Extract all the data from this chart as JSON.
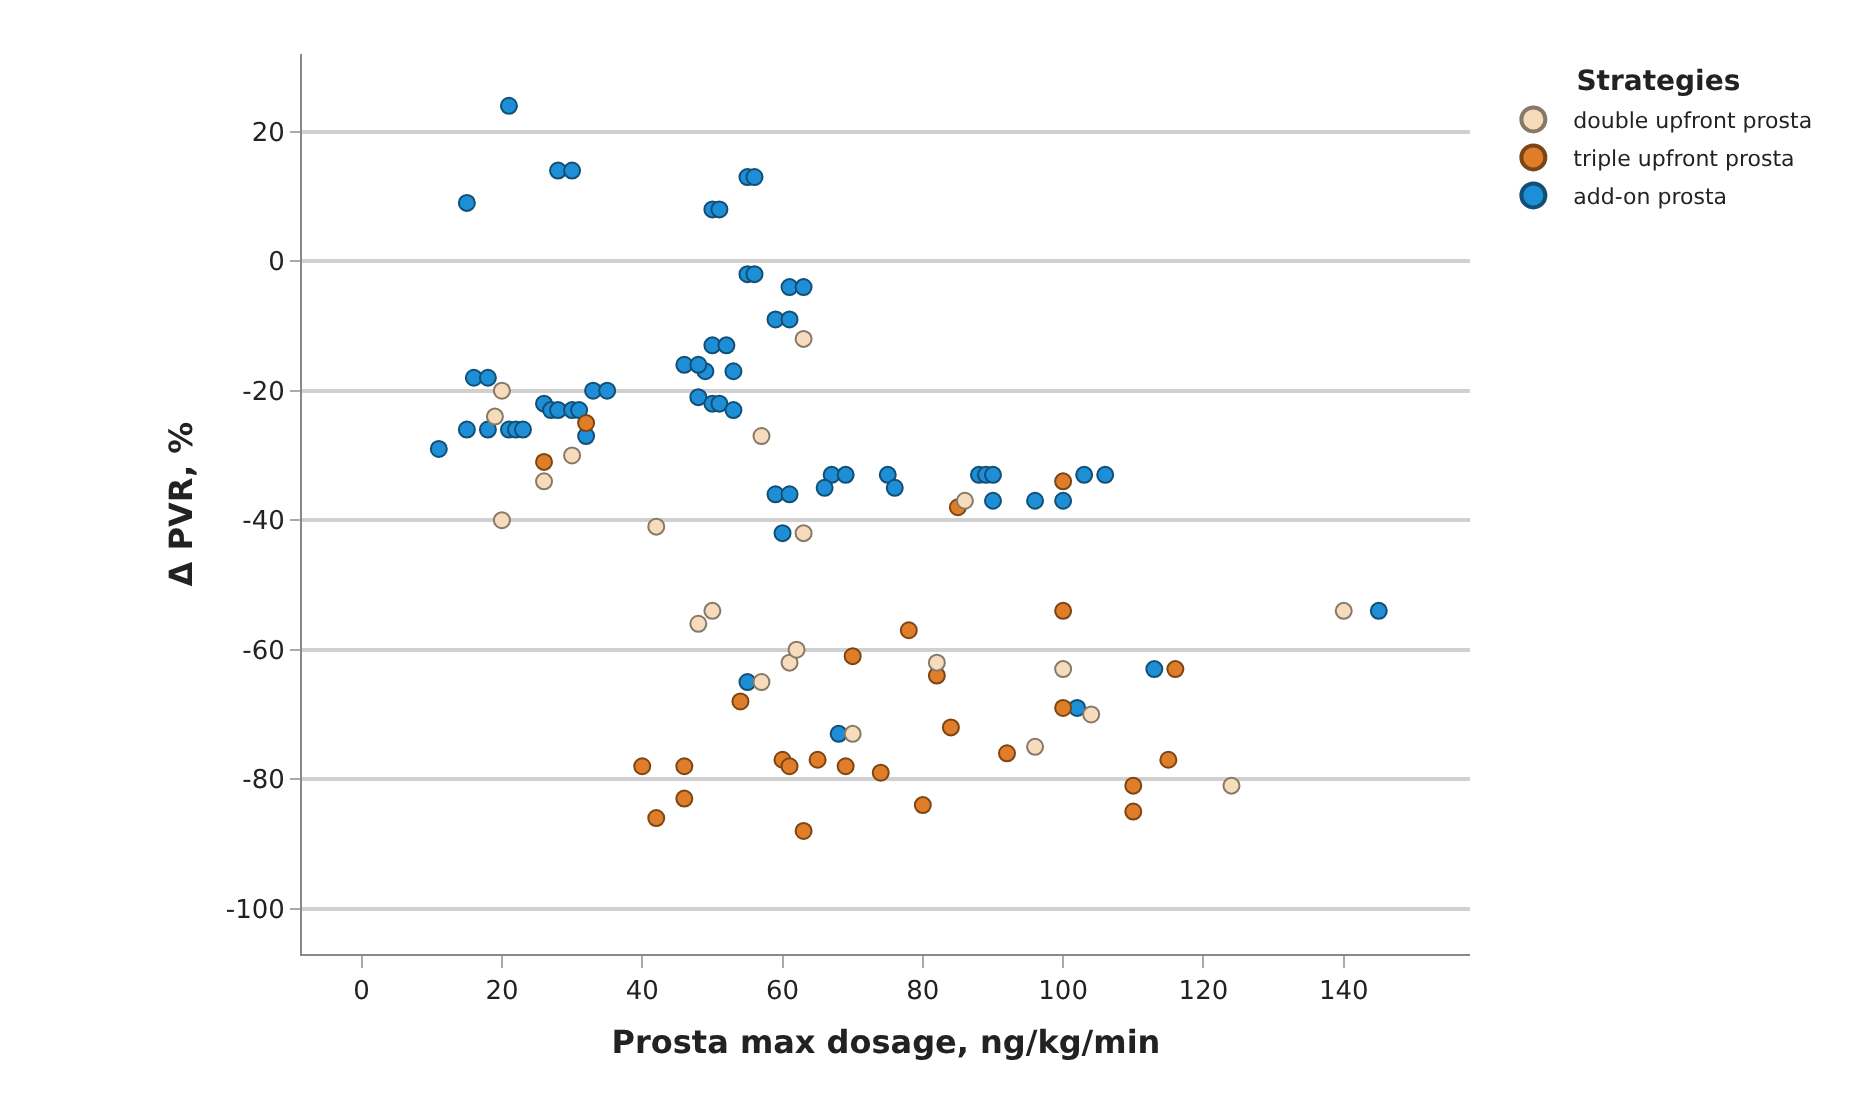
{
  "chart_data": {
    "type": "scatter",
    "xlabel": "Prosta max dosage, ng/kg/min",
    "ylabel": "Δ PVR, %",
    "legend_title": "Strategies",
    "legend": "top right",
    "grid": "y",
    "marker": "circle",
    "xlim": [
      -8.5,
      158
    ],
    "xticks": [
      0,
      20,
      40,
      60,
      80,
      100,
      120,
      140
    ],
    "ylim": [
      -107,
      32
    ],
    "yticks": [
      -100,
      -80,
      -60,
      -40,
      -20,
      0,
      20
    ],
    "series": [
      {
        "name": "double upfront prosta",
        "color": "#f6dcbc",
        "x": [
          20,
          19,
          26,
          30,
          20,
          42,
          63,
          57,
          63,
          48,
          50,
          61,
          62,
          57,
          70,
          82,
          96,
          104,
          100,
          124,
          140,
          86
        ],
        "values": [
          -20,
          -24,
          -34,
          -30,
          -40,
          -41,
          -12,
          -27,
          -42,
          -56,
          -54,
          -62,
          -60,
          -65,
          -73,
          -62,
          -75,
          -70,
          -63,
          -81,
          -54,
          -37
        ]
      },
      {
        "name": "triple upfront prosta",
        "color": "#e07d28",
        "x": [
          26,
          32,
          100,
          85,
          78,
          100,
          70,
          82,
          100,
          116,
          54,
          60,
          61,
          65,
          69,
          74,
          84,
          92,
          40,
          46,
          42,
          46,
          63,
          80,
          110,
          110,
          115
        ],
        "values": [
          -31,
          -25,
          -34,
          -38,
          -57,
          -54,
          -61,
          -64,
          -69,
          -63,
          -68,
          -77,
          -78,
          -77,
          -78,
          -79,
          -72,
          -76,
          -78,
          -78,
          -86,
          -83,
          -88,
          -84,
          -81,
          -85,
          -77
        ]
      },
      {
        "name": "add-on prosta",
        "color": "#1e8fd6",
        "x": [
          21,
          15,
          28,
          30,
          50,
          51,
          55,
          56,
          55,
          56,
          61,
          63,
          59,
          61,
          50,
          52,
          49,
          53,
          46,
          48,
          48,
          50,
          51,
          53,
          16,
          18,
          33,
          35,
          26,
          27,
          28,
          30,
          31,
          15,
          18,
          21,
          22,
          23,
          32,
          11,
          59,
          61,
          67,
          69,
          66,
          75,
          76,
          88,
          89,
          90,
          90,
          96,
          100,
          103,
          106,
          60,
          55,
          68,
          102,
          113,
          145
        ],
        "values": [
          24,
          9,
          14,
          14,
          8,
          8,
          13,
          13,
          -2,
          -2,
          -4,
          -4,
          -9,
          -9,
          -13,
          -13,
          -17,
          -17,
          -16,
          -16,
          -21,
          -22,
          -22,
          -23,
          -18,
          -18,
          -20,
          -20,
          -22,
          -23,
          -23,
          -23,
          -23,
          -26,
          -26,
          -26,
          -26,
          -26,
          -27,
          -29,
          -36,
          -36,
          -33,
          -33,
          -35,
          -33,
          -35,
          -33,
          -33,
          -33,
          -37,
          -37,
          -37,
          -33,
          -33,
          -42,
          -65,
          -73,
          -69,
          -63,
          -54
        ]
      }
    ]
  }
}
